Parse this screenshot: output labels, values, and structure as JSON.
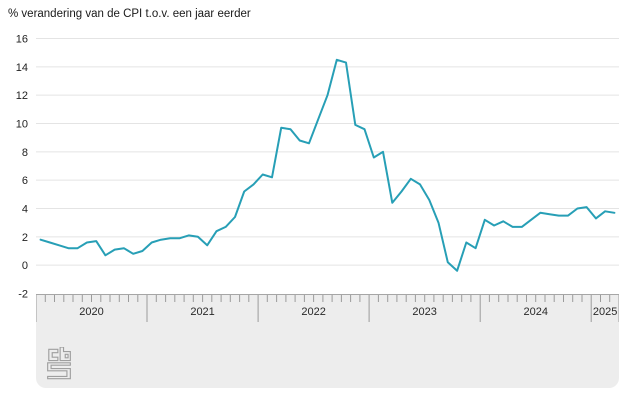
{
  "chart": {
    "title": "% verandering van de CPI t.o.v. een jaar eerder"
  },
  "chart_data": {
    "type": "line",
    "title": "% verandering van de CPI t.o.v. een jaar eerder",
    "xlabel": "",
    "ylabel": "% verandering van de CPI t.o.v. een jaar eerder",
    "frequency": "monthly",
    "x_start": "2020-01",
    "x_end": "2025-03",
    "x_years": [
      "2020",
      "2021",
      "2022",
      "2023",
      "2024",
      "2025"
    ],
    "values": [
      1.8,
      1.6,
      1.4,
      1.2,
      1.2,
      1.6,
      1.7,
      0.7,
      1.1,
      1.2,
      0.8,
      1.0,
      1.6,
      1.8,
      1.9,
      1.9,
      2.1,
      2.0,
      1.4,
      2.4,
      2.7,
      3.4,
      5.2,
      5.7,
      6.4,
      6.2,
      9.7,
      9.6,
      8.8,
      8.6,
      10.3,
      12.0,
      14.5,
      14.3,
      9.9,
      9.6,
      7.6,
      8.0,
      4.4,
      5.2,
      6.1,
      5.7,
      4.6,
      3.0,
      0.2,
      -0.4,
      1.6,
      1.2,
      3.2,
      2.8,
      3.1,
      2.7,
      2.7,
      3.2,
      3.7,
      3.6,
      3.5,
      3.5,
      4.0,
      4.1,
      3.3,
      3.8,
      3.7
    ],
    "ylim": [
      -2,
      16
    ],
    "ytick_step": 2,
    "grid": "horizontal",
    "legend": "none",
    "line_color": "#279fb6",
    "grid_color": "#e4e4e4",
    "axis_band_color": "#ededed",
    "tick_color": "#9b9b9b",
    "text_color": "#222222"
  },
  "branding": {
    "logo": "CBS"
  }
}
